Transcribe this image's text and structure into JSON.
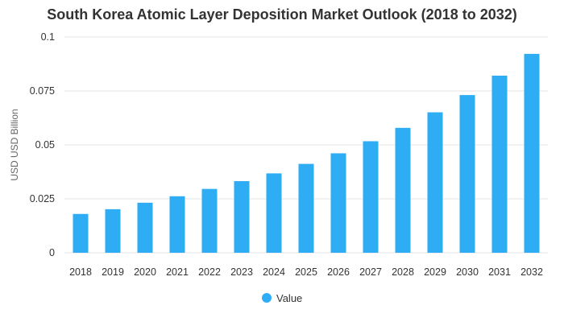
{
  "chart_data": {
    "type": "bar",
    "title": "South Korea Atomic Layer Deposition Market Outlook (2018 to 2032)",
    "xlabel": "",
    "ylabel": "USD USD Billion",
    "ylim": [
      0,
      0.1
    ],
    "yticks": [
      0,
      0.025,
      0.05,
      0.075,
      0.1
    ],
    "ytick_labels": [
      "0",
      "0.025",
      "0.05",
      "0.075",
      "0.1"
    ],
    "grid": true,
    "legend_position": "bottom-center",
    "categories": [
      "2018",
      "2019",
      "2020",
      "2021",
      "2022",
      "2023",
      "2024",
      "2025",
      "2026",
      "2027",
      "2028",
      "2029",
      "2030",
      "2031",
      "2032"
    ],
    "series": [
      {
        "name": "Value",
        "color": "#2eadf5",
        "values": [
          0.018,
          0.0202,
          0.0232,
          0.0262,
          0.0296,
          0.0332,
          0.0368,
          0.0412,
          0.0461,
          0.0517,
          0.0579,
          0.0651,
          0.0731,
          0.0821,
          0.0922
        ]
      }
    ]
  }
}
